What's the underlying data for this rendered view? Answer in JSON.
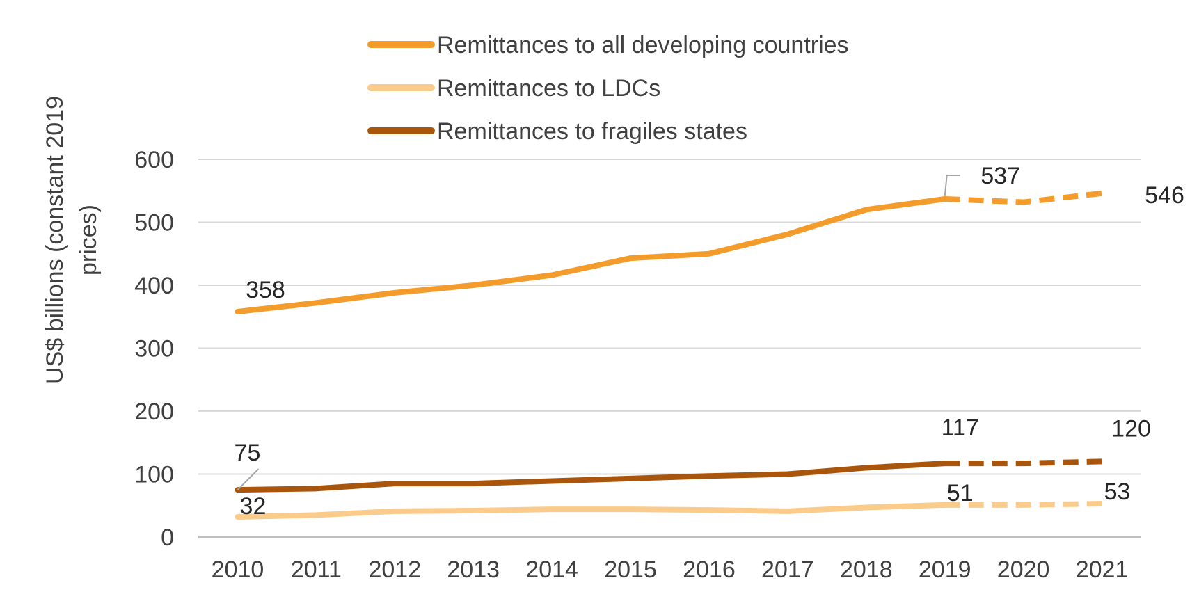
{
  "chart_data": {
    "type": "line",
    "title": "",
    "xlabel": "",
    "ylabel": "US$ billions (constant 2019 prices)",
    "ylabel_lines": [
      "US$ billions (constant 2019",
      "prices)"
    ],
    "categories": [
      "2010",
      "2011",
      "2012",
      "2013",
      "2014",
      "2015",
      "2016",
      "2017",
      "2018",
      "2019",
      "2020",
      "2021"
    ],
    "ylim": [
      0,
      600
    ],
    "yticks": [
      0,
      100,
      200,
      300,
      400,
      500,
      600
    ],
    "grid": true,
    "legend_position": "top",
    "projection_from": "2019",
    "series": [
      {
        "name": "Remittances to all developing countries",
        "color": "#f39c2b",
        "values": [
          358,
          372,
          388,
          400,
          416,
          443,
          450,
          481,
          520,
          537,
          532,
          546
        ]
      },
      {
        "name": "Remittances to LDCs",
        "color": "#fbcb8c",
        "values": [
          32,
          35,
          41,
          42,
          44,
          44,
          43,
          41,
          47,
          51,
          51,
          53
        ]
      },
      {
        "name": "Remittances to fragiles states",
        "color": "#a9560c",
        "values": [
          75,
          77,
          85,
          85,
          89,
          93,
          97,
          100,
          110,
          117,
          117,
          120
        ]
      }
    ],
    "data_labels": [
      {
        "series": 0,
        "category": "2010",
        "text": "358"
      },
      {
        "series": 0,
        "category": "2019",
        "text": "537"
      },
      {
        "series": 0,
        "category": "2021",
        "text": "546"
      },
      {
        "series": 1,
        "category": "2010",
        "text": "32"
      },
      {
        "series": 1,
        "category": "2019",
        "text": "51"
      },
      {
        "series": 1,
        "category": "2021",
        "text": "53"
      },
      {
        "series": 2,
        "category": "2010",
        "text": "75"
      },
      {
        "series": 2,
        "category": "2019",
        "text": "117"
      },
      {
        "series": 2,
        "category": "2021",
        "text": "120"
      }
    ],
    "colors": {
      "gridline": "#d9d9d9",
      "axis": "#bfbfbf",
      "text": "#404040",
      "leader": "#a6a6a6"
    }
  }
}
